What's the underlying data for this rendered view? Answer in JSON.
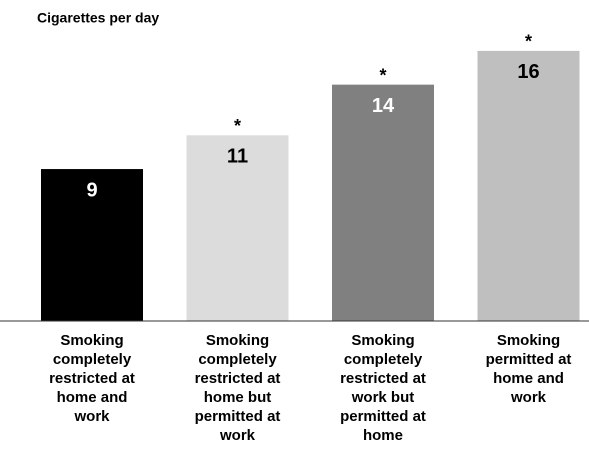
{
  "chart_data": {
    "type": "bar",
    "title": "Cigarettes per day",
    "categories": [
      "Smoking completely restricted at home and work",
      "Smoking completely restricted at home but permitted at work",
      "Smoking completely restricted at work but permitted at home",
      "Smoking permitted at home and work"
    ],
    "values": [
      9,
      11,
      14,
      16
    ],
    "colors": [
      "#000000",
      "#dcdcdc",
      "#808080",
      "#bfbfbf"
    ],
    "markers": [
      null,
      "*",
      "*",
      "*"
    ],
    "ylim": [
      0,
      17
    ]
  }
}
